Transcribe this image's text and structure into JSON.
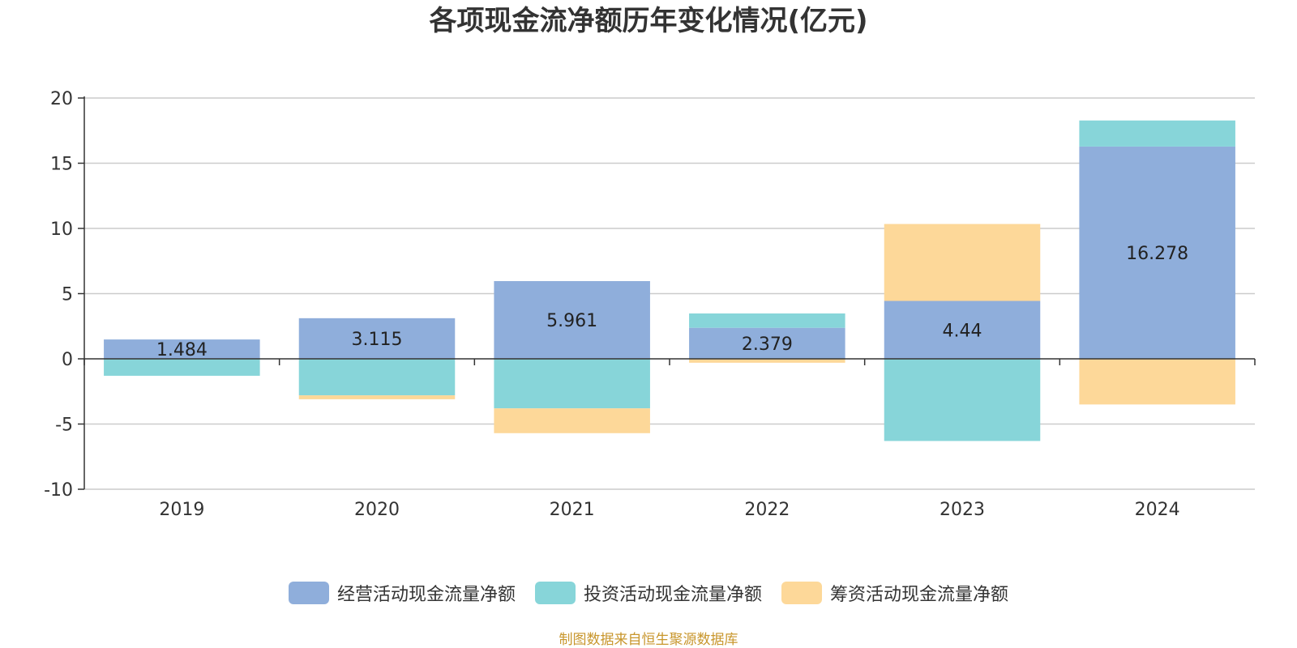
{
  "colors": {
    "operating": "#8faedb",
    "investing": "#87d5d9",
    "financing": "#fdd899",
    "source": "#c8962c"
  },
  "footer": {
    "source": "制图数据来自恒生聚源数据库"
  },
  "chart_data": {
    "type": "bar",
    "stacked": true,
    "title": "各项现金流净额历年变化情况(亿元)",
    "categories": [
      "2019",
      "2020",
      "2021",
      "2022",
      "2023",
      "2024"
    ],
    "ylim": [
      -10,
      20
    ],
    "yticks": [
      -10,
      -5,
      0,
      5,
      10,
      15,
      20
    ],
    "ytick_labels": [
      "-10",
      "-5",
      "0",
      "5",
      "10",
      "15",
      "20"
    ],
    "grid": true,
    "legend_position": "bottom",
    "series": [
      {
        "name": "经营活动现金流量净额",
        "key": "operating",
        "values": [
          1.484,
          3.115,
          5.961,
          2.379,
          4.44,
          16.278
        ],
        "labels": [
          "1.484",
          "3.115",
          "5.961",
          "2.379",
          "4.44",
          "16.278"
        ]
      },
      {
        "name": "投资活动现金流量净额",
        "key": "investing",
        "values": [
          -1.3,
          -2.8,
          -3.8,
          1.1,
          -6.3,
          2.0
        ]
      },
      {
        "name": "筹资活动现金流量净额",
        "key": "financing",
        "values": [
          0.0,
          -0.3,
          -1.9,
          -0.3,
          5.9,
          -3.5
        ]
      }
    ]
  }
}
